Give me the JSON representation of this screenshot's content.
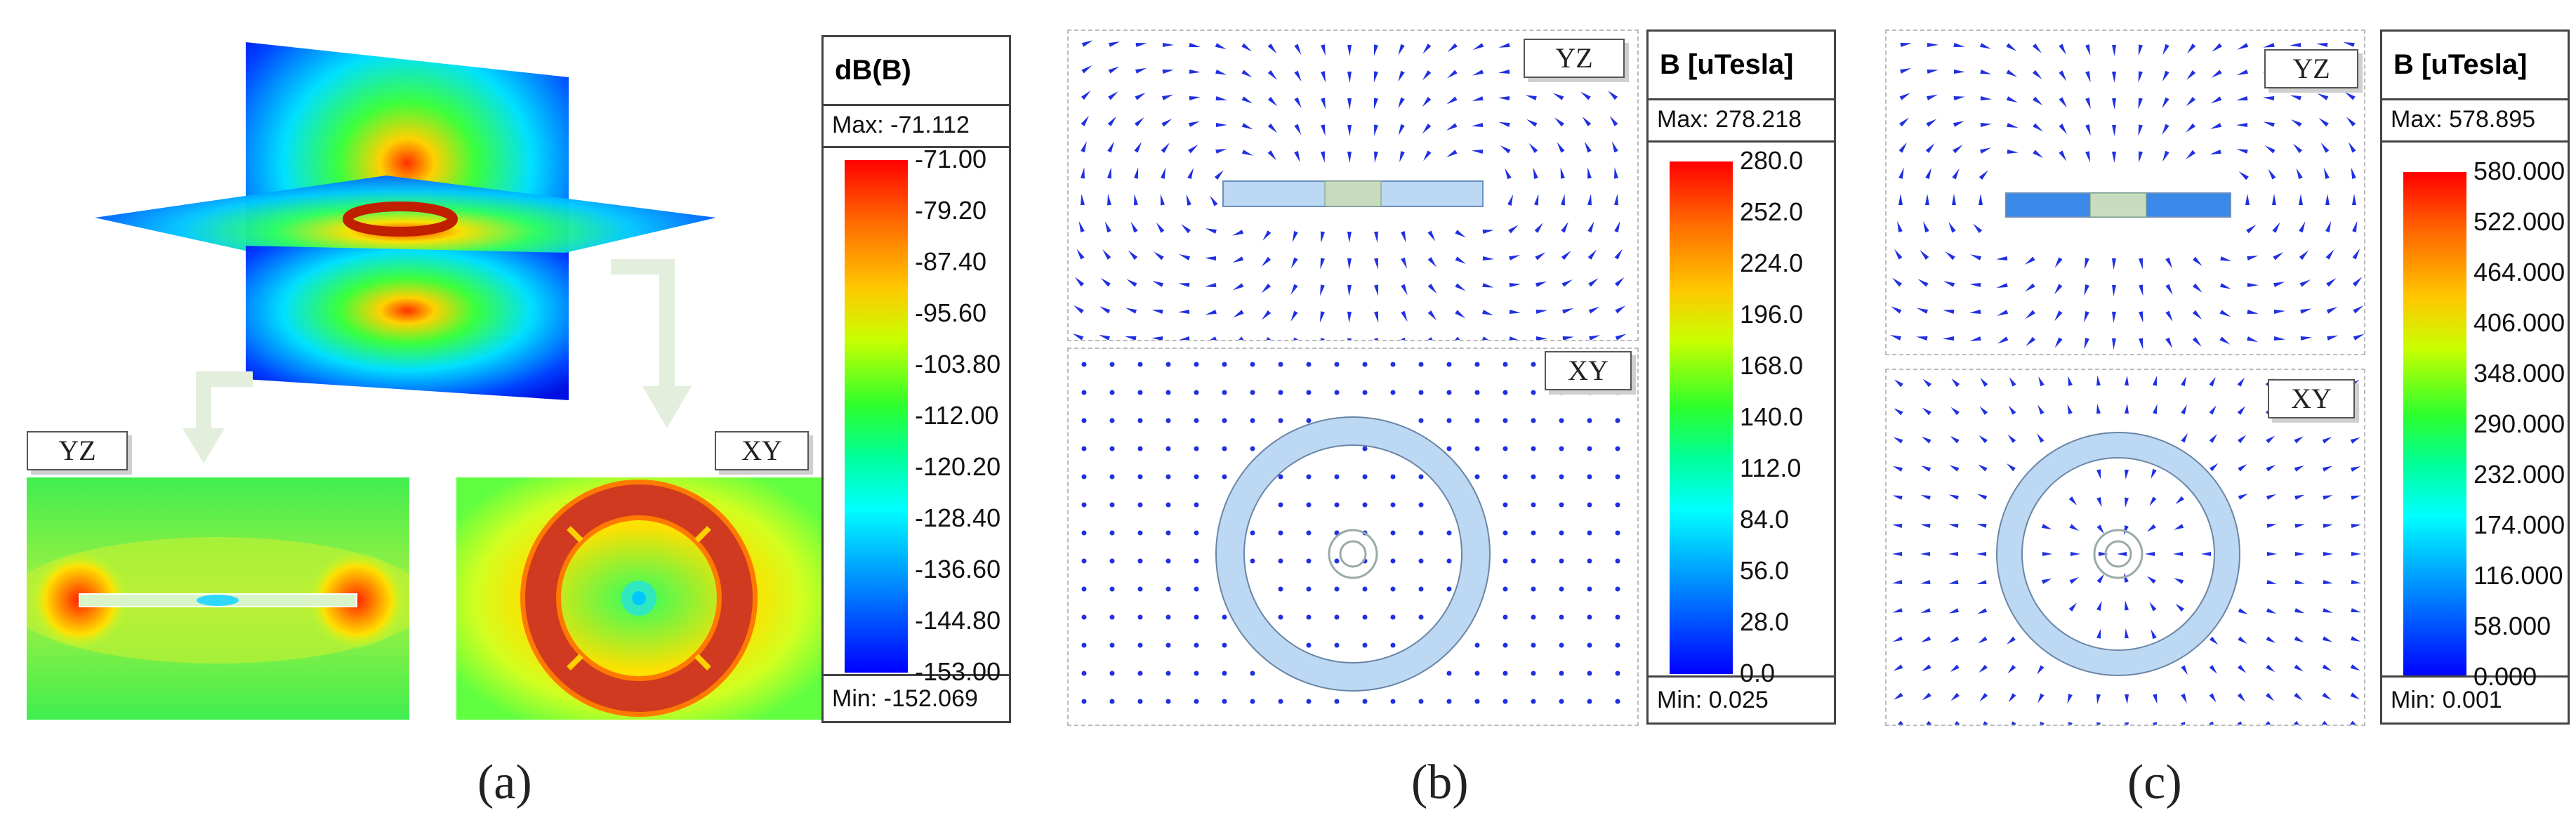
{
  "panels": {
    "a": {
      "label": "(a)",
      "tag_yz": "YZ",
      "tag_xy": "XY",
      "legend": {
        "title": "dB(B)",
        "max": "Max: -71.112",
        "min": "Min: -152.069",
        "ticks": [
          "-71.00",
          "-79.20",
          "-87.40",
          "-95.60",
          "-103.80",
          "-112.00",
          "-120.20",
          "-128.40",
          "-136.60",
          "-144.80",
          "-153.00"
        ]
      }
    },
    "b": {
      "label": "(b)",
      "tag_yz": "YZ",
      "tag_xy": "XY",
      "legend": {
        "title": "B [uTesla]",
        "max": "Max: 278.218",
        "min": "Min:   0.025",
        "ticks": [
          "280.0",
          "252.0",
          "224.0",
          "196.0",
          "168.0",
          "140.0",
          "112.0",
          "84.0",
          "56.0",
          "28.0",
          "0.0"
        ]
      }
    },
    "c": {
      "label": "(c)",
      "tag_yz": "YZ",
      "tag_xy": "XY",
      "legend": {
        "title": "B [uTesla]",
        "max": "Max: 578.895",
        "min": "Min:   0.001",
        "ticks": [
          "580.000",
          "522.000",
          "464.000",
          "406.000",
          "348.000",
          "290.000",
          "232.000",
          "174.000",
          "116.000",
          "58.000",
          "0.000"
        ]
      }
    }
  },
  "colors": {
    "low": "#0000ff",
    "mid": "#2cff2c",
    "high": "#ff0000",
    "coil_fill": "#bcd8f2",
    "arrow": "#2030e0"
  }
}
